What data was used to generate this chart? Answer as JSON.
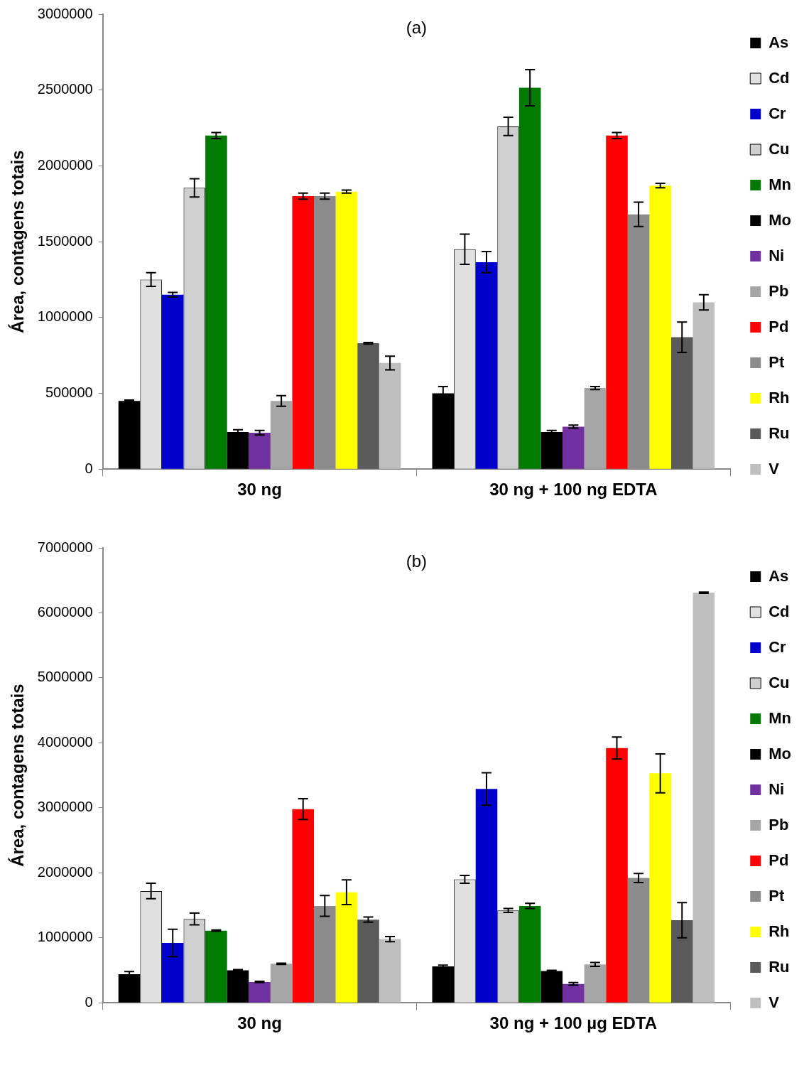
{
  "chart_data": [
    {
      "type": "bar",
      "title": "(a)",
      "ylabel": "Área, contagens totais",
      "categories": [
        "30 ng",
        "30 ng + 100 ng EDTA"
      ],
      "ylim": [
        0,
        3000000
      ],
      "yticks": [
        0,
        500000,
        1000000,
        1500000,
        2000000,
        2500000,
        3000000
      ],
      "grid": false,
      "legend": "right",
      "series": [
        {
          "name": "As",
          "color": "#000000",
          "values": [
            450000,
            500000
          ],
          "errors": [
            5000,
            45000
          ]
        },
        {
          "name": "Cd",
          "color": "#e0e0e0",
          "values": [
            1250000,
            1450000
          ],
          "errors": [
            45000,
            100000
          ]
        },
        {
          "name": "Cr",
          "color": "#0000cc",
          "values": [
            1150000,
            1365000
          ],
          "errors": [
            15000,
            70000
          ]
        },
        {
          "name": "Cu",
          "color": "#cfcfcf",
          "values": [
            1855000,
            2260000
          ],
          "errors": [
            60000,
            60000
          ]
        },
        {
          "name": "Mn",
          "color": "#007a00",
          "values": [
            2200000,
            2515000
          ],
          "errors": [
            20000,
            120000
          ]
        },
        {
          "name": "Mo",
          "color": "#000000",
          "values": [
            245000,
            245000
          ],
          "errors": [
            15000,
            10000
          ]
        },
        {
          "name": "Ni",
          "color": "#7030a0",
          "values": [
            240000,
            280000
          ],
          "errors": [
            15000,
            10000
          ]
        },
        {
          "name": "Pb",
          "color": "#a6a6a6",
          "values": [
            450000,
            535000
          ],
          "errors": [
            35000,
            10000
          ]
        },
        {
          "name": "Pd",
          "color": "#ff0000",
          "values": [
            1800000,
            2200000
          ],
          "errors": [
            20000,
            20000
          ]
        },
        {
          "name": "Pt",
          "color": "#8c8c8c",
          "values": [
            1800000,
            1680000
          ],
          "errors": [
            20000,
            80000
          ]
        },
        {
          "name": "Rh",
          "color": "#ffff00",
          "values": [
            1830000,
            1870000
          ],
          "errors": [
            10000,
            15000
          ]
        },
        {
          "name": "Ru",
          "color": "#5a5a5a",
          "values": [
            830000,
            870000
          ],
          "errors": [
            5000,
            100000
          ]
        },
        {
          "name": "V",
          "color": "#bfbfbf",
          "values": [
            700000,
            1100000
          ],
          "errors": [
            45000,
            50000
          ]
        }
      ]
    },
    {
      "type": "bar",
      "title": "(b)",
      "ylabel": "Área, contagens totais",
      "categories": [
        "30 ng",
        "30 ng + 100 µg EDTA"
      ],
      "ylim": [
        0,
        7000000
      ],
      "yticks": [
        0,
        1000000,
        2000000,
        3000000,
        4000000,
        5000000,
        6000000,
        7000000
      ],
      "grid": false,
      "legend": "right",
      "series": [
        {
          "name": "As",
          "color": "#000000",
          "values": [
            440000,
            560000
          ],
          "errors": [
            40000,
            20000
          ]
        },
        {
          "name": "Cd",
          "color": "#e0e0e0",
          "values": [
            1720000,
            1900000
          ],
          "errors": [
            120000,
            60000
          ]
        },
        {
          "name": "Cr",
          "color": "#0000cc",
          "values": [
            920000,
            3290000
          ],
          "errors": [
            210000,
            250000
          ]
        },
        {
          "name": "Cu",
          "color": "#cfcfcf",
          "values": [
            1290000,
            1420000
          ],
          "errors": [
            90000,
            30000
          ]
        },
        {
          "name": "Mn",
          "color": "#007a00",
          "values": [
            1110000,
            1490000
          ],
          "errors": [
            10000,
            40000
          ]
        },
        {
          "name": "Mo",
          "color": "#000000",
          "values": [
            500000,
            490000
          ],
          "errors": [
            10000,
            10000
          ]
        },
        {
          "name": "Ni",
          "color": "#7030a0",
          "values": [
            320000,
            290000
          ],
          "errors": [
            10000,
            20000
          ]
        },
        {
          "name": "Pb",
          "color": "#a6a6a6",
          "values": [
            600000,
            590000
          ],
          "errors": [
            10000,
            30000
          ]
        },
        {
          "name": "Pd",
          "color": "#ff0000",
          "values": [
            2980000,
            3920000
          ],
          "errors": [
            160000,
            170000
          ]
        },
        {
          "name": "Pt",
          "color": "#8c8c8c",
          "values": [
            1490000,
            1920000
          ],
          "errors": [
            160000,
            70000
          ]
        },
        {
          "name": "Rh",
          "color": "#ffff00",
          "values": [
            1700000,
            3530000
          ],
          "errors": [
            190000,
            300000
          ]
        },
        {
          "name": "Ru",
          "color": "#5a5a5a",
          "values": [
            1280000,
            1270000
          ],
          "errors": [
            40000,
            270000
          ]
        },
        {
          "name": "V",
          "color": "#bfbfbf",
          "values": [
            980000,
            6310000
          ],
          "errors": [
            40000,
            10000
          ]
        }
      ]
    }
  ]
}
